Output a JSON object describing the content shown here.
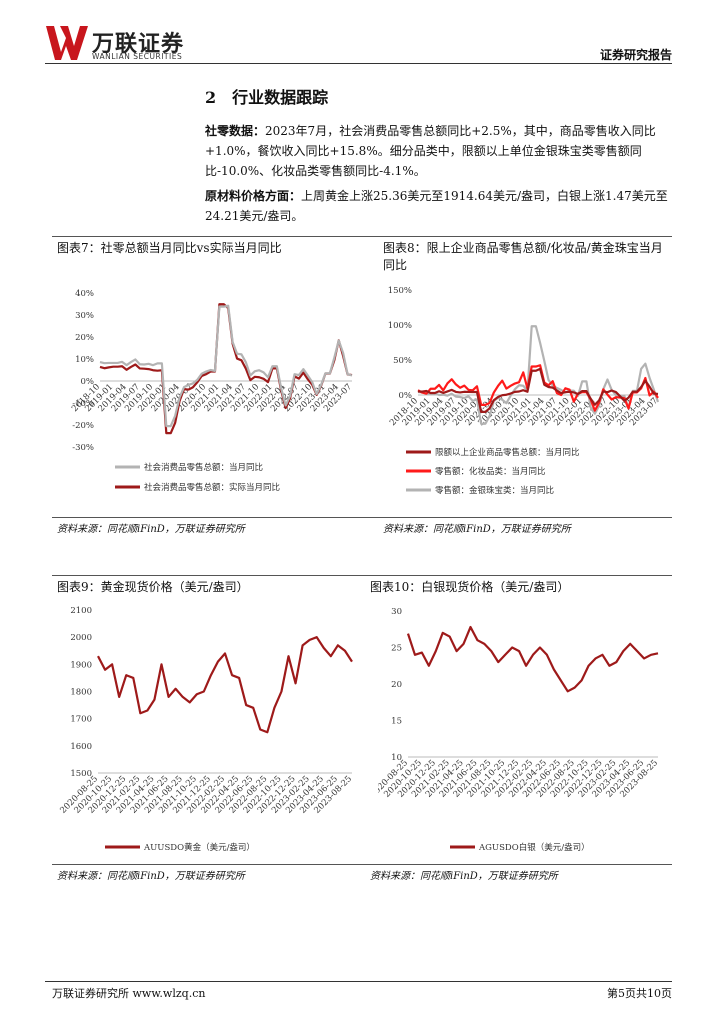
{
  "header": {
    "logo_cn": "万联证券",
    "logo_en": "WANLIAN SECURITIES",
    "report_type": "证券研究报告"
  },
  "section": {
    "number": "2",
    "title": "行业数据跟踪"
  },
  "paragraphs": [
    {
      "label": "社零数据：",
      "text": "2023年7月，社会消费品零售总额同比+2.5%，其中，商品零售收入同比+1.0%，餐饮收入同比+15.8%。细分品类中，限额以上单位金银珠宝类零售额同比-10.0%、化妆品类零售额同比-4.1%。"
    },
    {
      "label": "原材料价格方面：",
      "text": "上周黄金上涨25.36美元至1914.64美元/盎司，白银上涨1.47美元至24.21美元/盎司。"
    }
  ],
  "chart_data": [
    {
      "type": "line",
      "title": "图表7：社零总额当月同比vs实际当月同比",
      "source": "资料来源：同花顺iFinD，万联证券研究所",
      "categories": [
        "2018-10",
        null,
        null,
        "2019-01",
        null,
        null,
        "2019-04",
        null,
        null,
        "2019-07",
        null,
        null,
        "2019-10",
        null,
        null,
        "2020-01",
        null,
        null,
        "2020-04",
        null,
        null,
        "2020-07",
        null,
        null,
        "2020-10",
        null,
        null,
        "2021-01",
        null,
        null,
        "2021-04",
        null,
        null,
        "2021-07",
        null,
        null,
        "2021-10",
        null,
        null,
        "2022-01",
        null,
        null,
        "2022-04",
        null,
        null,
        "2022-07",
        null,
        null,
        "2022-10",
        null,
        null,
        "2023-01",
        null,
        null,
        "2023-04",
        null,
        null,
        "2023-07"
      ],
      "ylim": [
        -30,
        40
      ],
      "yticks": [
        {
          "value": -30,
          "label": "-30%"
        },
        {
          "value": -20,
          "label": "-20%"
        },
        {
          "value": -10,
          "label": "-10%"
        },
        {
          "value": 0,
          "label": "0%"
        },
        {
          "value": 10,
          "label": "10%"
        },
        {
          "value": 20,
          "label": "20%"
        },
        {
          "value": 30,
          "label": "30%"
        },
        {
          "value": 40,
          "label": "40%"
        }
      ],
      "series": [
        {
          "name": "社会消费品零售总额：当月同比",
          "color": "#b3b3b3",
          "values": [
            8.6,
            8.1,
            8.2,
            8.2,
            8.2,
            8.7,
            7.2,
            8.6,
            9.8,
            7.6,
            7.5,
            7.8,
            7.2,
            8.0,
            8.0,
            -20.5,
            -20.5,
            -15.8,
            -7.5,
            -2.8,
            -1.8,
            -1.1,
            0.5,
            3.3,
            4.3,
            5.0,
            4.6,
            33.8,
            33.8,
            34.2,
            17.7,
            12.4,
            12.1,
            8.5,
            2.5,
            4.4,
            4.9,
            3.9,
            1.7,
            6.7,
            6.7,
            -3.5,
            -11.1,
            -6.7,
            3.1,
            2.7,
            5.4,
            2.5,
            -0.5,
            -5.9,
            -1.8,
            3.5,
            3.5,
            10.6,
            18.4,
            12.7,
            3.1,
            2.5
          ]
        },
        {
          "name": "社会消费品零售总额：实际当月同比",
          "color": "#9e1a1a",
          "values": [
            6.4,
            5.8,
            6.2,
            6.5,
            6.5,
            6.7,
            5.1,
            6.4,
            7.5,
            5.7,
            5.6,
            5.4,
            4.9,
            4.7,
            4.9,
            -23.7,
            -23.7,
            -19.0,
            -9.1,
            -3.7,
            -3.9,
            -2.9,
            -0.6,
            2.3,
            3.1,
            4.3,
            4.3,
            34.9,
            34.9,
            33.1,
            16.9,
            10.2,
            9.4,
            5.6,
            0.4,
            1.9,
            1.7,
            1.0,
            -0.5,
            5.7,
            5.7,
            -4.5,
            -12.3,
            -7.8,
            2.1,
            1.1,
            3.8,
            0.8,
            -1.7,
            -6.3,
            -2.2,
            3.4,
            3.4,
            9.4,
            18.5,
            11.3,
            3.0,
            2.7
          ]
        }
      ]
    },
    {
      "type": "line",
      "title": "图表8：限上企业商品零售总额/化妆品/黄金珠宝当月同比",
      "source": "资料来源：同花顺iFinD，万联证券研究所",
      "categories": [
        "2018-10",
        null,
        null,
        "2019-01",
        null,
        null,
        "2019-04",
        null,
        null,
        "2019-07",
        null,
        null,
        "2019-10",
        null,
        null,
        "2020-01",
        null,
        null,
        "2020-04",
        null,
        null,
        "2020-07",
        null,
        null,
        "2020-10",
        null,
        null,
        "2021-01",
        null,
        null,
        "2021-04",
        null,
        null,
        "2021-07",
        null,
        null,
        "2021-10",
        null,
        null,
        "2022-01",
        null,
        null,
        "2022-04",
        null,
        null,
        "2022-07",
        null,
        null,
        "2022-10",
        null,
        null,
        "2023-01",
        null,
        null,
        "2023-04",
        null,
        null,
        "2023-07"
      ],
      "ylim": [
        -50,
        150
      ],
      "yticks": [
        {
          "value": 0,
          "label": "0%"
        },
        {
          "value": 50,
          "label": "50%"
        },
        {
          "value": 100,
          "label": "100%"
        },
        {
          "value": 150,
          "label": "150%"
        }
      ],
      "series": [
        {
          "name": "限额以上企业商品零售总额：当月同比",
          "color": "#9e1a1a",
          "values": [
            5.1,
            4.8,
            5.8,
            2.9,
            2.9,
            5.4,
            3.0,
            5.1,
            7.3,
            4.4,
            3.7,
            4.6,
            4.4,
            4.3,
            4.4,
            -24.1,
            -24.1,
            -19.0,
            -7.5,
            -2.8,
            -0.3,
            0.4,
            2.1,
            4.5,
            5.0,
            6.8,
            4.7,
            34.6,
            34.6,
            37.3,
            14.6,
            11.4,
            10.5,
            6.3,
            2.6,
            4.0,
            4.6,
            3.7,
            1.4,
            5.6,
            5.6,
            -5.2,
            -13.9,
            -7.8,
            5.1,
            4.0,
            6.4,
            4.2,
            -1.9,
            -8.2,
            -3.8,
            4.7,
            4.7,
            11.5,
            20.4,
            11.8,
            2.1,
            1.5
          ]
        },
        {
          "name": "零售额：化妆品类：当月同比",
          "color": "#ff1a1a",
          "values": [
            6.8,
            3.4,
            1.9,
            8.9,
            8.9,
            14.4,
            6.7,
            16.7,
            22.5,
            15.1,
            10.4,
            13.4,
            7.3,
            6.7,
            12.5,
            -14.1,
            -14.1,
            -11.4,
            3.5,
            12.9,
            20.5,
            9.2,
            13.1,
            16.4,
            18.3,
            32.3,
            9.0,
            40.7,
            40.7,
            42.5,
            17.8,
            13.8,
            19.7,
            2.7,
            0.0,
            9.6,
            7.6,
            -9.4,
            1.9,
            4.1,
            4.1,
            -6.3,
            -22.3,
            -11.0,
            8.1,
            0.7,
            -6.4,
            -3.1,
            -3.7,
            -4.6,
            -19.3,
            3.8,
            3.8,
            9.6,
            24.3,
            -0.7,
            4.8,
            -4.1
          ]
        },
        {
          "name": "零售额：金银珠宝类：当月同比",
          "color": "#b3b3b3",
          "values": [
            4.3,
            3.8,
            2.3,
            2.3,
            2.3,
            0.0,
            0.4,
            -0.9,
            1.8,
            -2.3,
            -2.9,
            -4.3,
            -1.9,
            -8.4,
            -6.3,
            -41.1,
            -41.1,
            -30.1,
            -8.6,
            -3.9,
            -6.8,
            -11.7,
            -0.9,
            8.1,
            13.9,
            13.2,
            6.1,
            98.2,
            98.2,
            74.5,
            48.6,
            21.5,
            13.4,
            9.9,
            7.3,
            3.7,
            6.3,
            6.1,
            -1.1,
            19.5,
            19.5,
            -17.9,
            -26.7,
            -15.5,
            8.1,
            22.1,
            7.2,
            -0.1,
            -2.5,
            -1.1,
            -18.4,
            5.9,
            5.9,
            37.4,
            44.7,
            24.4,
            7.8,
            -10.0
          ]
        }
      ]
    },
    {
      "type": "line",
      "title": "图表9：黄金现货价格（美元/盎司）",
      "source": "资料来源：同花顺iFinD，万联证券研究所",
      "categories": [
        "2020-08-25",
        null,
        "2020-10-25",
        null,
        "2020-12-25",
        null,
        "2021-02-25",
        null,
        "2021-04-25",
        null,
        "2021-06-25",
        null,
        "2021-08-25",
        null,
        "2021-10-25",
        null,
        "2021-12-25",
        null,
        "2022-02-25",
        null,
        "2022-04-25",
        null,
        "2022-06-25",
        null,
        "2022-08-25",
        null,
        "2022-10-25",
        null,
        "2022-12-25",
        null,
        "2023-02-25",
        null,
        "2023-04-25",
        null,
        "2023-06-25",
        null,
        "2023-08-25"
      ],
      "ylim": [
        1500,
        2100
      ],
      "yticks": [
        1500,
        1600,
        1700,
        1800,
        1900,
        2000,
        2100
      ],
      "series": [
        {
          "name": "AUUSDO黄金（美元/盎司）",
          "color": "#9e1a1a",
          "values": [
            1930,
            1880,
            1900,
            1780,
            1860,
            1850,
            1720,
            1730,
            1770,
            1900,
            1780,
            1810,
            1780,
            1760,
            1790,
            1800,
            1860,
            1910,
            1940,
            1860,
            1850,
            1750,
            1740,
            1660,
            1650,
            1740,
            1800,
            1930,
            1830,
            1970,
            1990,
            2000,
            1960,
            1930,
            1970,
            1950,
            1910
          ]
        }
      ]
    },
    {
      "type": "line",
      "title": "图表10：白银现货价格（美元/盎司）",
      "source": "资料来源：同花顺iFinD，万联证券研究所",
      "categories": [
        "2020-08-25",
        null,
        "2020-10-25",
        null,
        "2020-12-25",
        null,
        "2021-02-25",
        null,
        "2021-04-25",
        null,
        "2021-06-25",
        null,
        "2021-08-25",
        null,
        "2021-10-25",
        null,
        "2021-12-25",
        null,
        "2022-02-25",
        null,
        "2022-04-25",
        null,
        "2022-06-25",
        null,
        "2022-08-25",
        null,
        "2022-10-25",
        null,
        "2022-12-25",
        null,
        "2023-02-25",
        null,
        "2023-04-25",
        null,
        "2023-06-25",
        null,
        "2023-08-25"
      ],
      "ylim": [
        10,
        30
      ],
      "yticks": [
        10,
        15,
        20,
        25,
        30
      ],
      "series": [
        {
          "name": "AGUSDO白银（美元/盎司）",
          "color": "#9e1a1a",
          "values": [
            26.9,
            24.0,
            24.3,
            22.5,
            24.5,
            27.0,
            26.5,
            24.5,
            25.5,
            27.8,
            26.0,
            25.5,
            24.5,
            23.0,
            24.0,
            25.0,
            24.5,
            22.5,
            24.0,
            25.0,
            24.0,
            22.0,
            20.5,
            19.0,
            19.5,
            20.5,
            22.5,
            23.5,
            24.0,
            22.5,
            23.0,
            24.5,
            25.5,
            24.5,
            23.5,
            24.0,
            24.2
          ]
        }
      ]
    }
  ],
  "footer": {
    "left": "万联证券研究所 www.wlzq.cn",
    "page": "第5页共10页"
  }
}
